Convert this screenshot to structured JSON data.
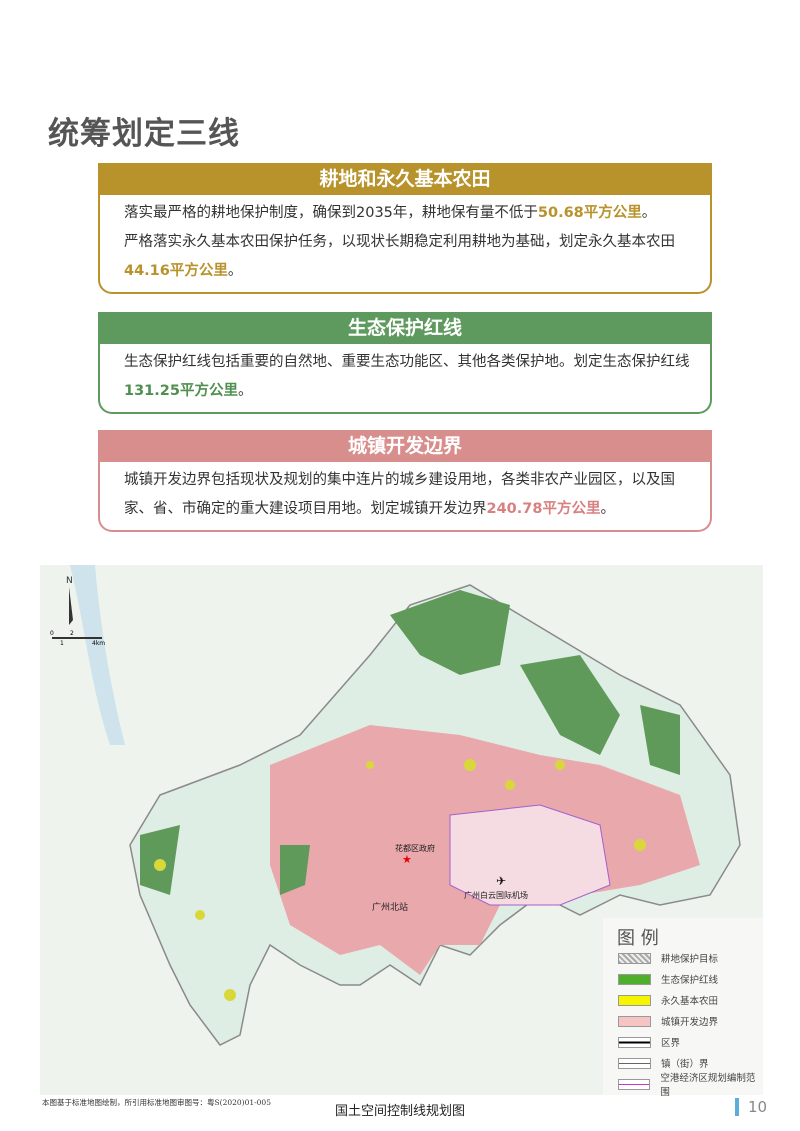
{
  "title": "统筹划定三线",
  "sections": [
    {
      "heading": "耕地和永久基本农田",
      "color": "#b8922b",
      "p1": "落实最严格的耕地保护制度，确保到2035年，耕地保有量不低于",
      "v1": "50.68平方公里",
      "e1": "。",
      "p2": "严格落实永久基本农田保护任务，以现状长期稳定利用耕地为基础，划定永久基本农田",
      "v2": "44.16平方公里",
      "e2": "。"
    },
    {
      "heading": "生态保护红线",
      "color": "#5e9a5e",
      "p1": "生态保护红线包括重要的自然地、重要生态功能区、其他各类保护地。划定生态保护红线",
      "v1": "131.25平方公里",
      "e1": "。"
    },
    {
      "heading": "城镇开发边界",
      "color": "#d98e8e",
      "p1": "城镇开发边界包括现状及规划的集中连片的城乡建设用地，各类非农产业园区，以及国家、省、市确定的重大建设项目用地。划定城镇开发边界",
      "v1": "240.78平方公里",
      "e1": "。"
    }
  ],
  "map": {
    "north": "N",
    "scale": [
      "0",
      "1",
      "2",
      "4km"
    ],
    "labels": {
      "gov": "花都区政府",
      "station": "广州北站",
      "airport": "广州白云国际机场"
    },
    "legend_title": "图 例",
    "legend": [
      {
        "label": "耕地保护目标",
        "color": "#bbbbbb"
      },
      {
        "label": "生态保护红线",
        "color": "#4fae2a"
      },
      {
        "label": "永久基本农田",
        "color": "#f5f500"
      },
      {
        "label": "城镇开发边界",
        "color": "#f7c4c4"
      },
      {
        "label": "区界",
        "color": "#000000"
      },
      {
        "label": "镇（街）界",
        "color": "#666666"
      },
      {
        "label": "空港经济区规划编制范围",
        "color": "#cc33cc"
      }
    ]
  },
  "footer": {
    "note": "本图基于标准地图绘制，所引用标准地图审图号：粤S(2020)01-005",
    "caption": "国土空间控制线规划图",
    "page": "10"
  }
}
